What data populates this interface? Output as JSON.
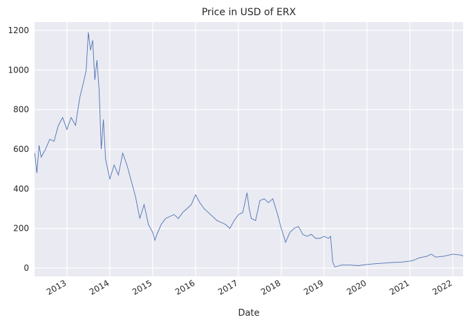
{
  "chart_data": {
    "type": "line",
    "title": "Price in USD of ERX",
    "x_label": "Date",
    "x": [
      2012.25,
      2012.3,
      2012.35,
      2012.4,
      2012.5,
      2012.6,
      2012.7,
      2012.8,
      2012.9,
      2013.0,
      2013.1,
      2013.2,
      2013.3,
      2013.4,
      2013.45,
      2013.5,
      2013.55,
      2013.6,
      2013.65,
      2013.7,
      2013.75,
      2013.8,
      2013.85,
      2013.9,
      2014.0,
      2014.1,
      2014.2,
      2014.3,
      2014.4,
      2014.5,
      2014.6,
      2014.7,
      2014.8,
      2014.9,
      2015.0,
      2015.05,
      2015.1,
      2015.2,
      2015.3,
      2015.4,
      2015.5,
      2015.6,
      2015.7,
      2015.8,
      2015.9,
      2016.0,
      2016.1,
      2016.2,
      2016.3,
      2016.4,
      2016.5,
      2016.6,
      2016.7,
      2016.8,
      2016.9,
      2017.0,
      2017.1,
      2017.2,
      2017.25,
      2017.3,
      2017.4,
      2017.5,
      2017.6,
      2017.7,
      2017.8,
      2017.9,
      2018.0,
      2018.1,
      2018.2,
      2018.3,
      2018.4,
      2018.5,
      2018.6,
      2018.7,
      2018.8,
      2018.9,
      2019.0,
      2019.1,
      2019.15,
      2019.2,
      2019.25,
      2019.4,
      2019.6,
      2019.8,
      2020.0,
      2020.2,
      2020.4,
      2020.6,
      2020.8,
      2021.0,
      2021.1,
      2021.2,
      2021.4,
      2021.5,
      2021.6,
      2021.8,
      2022.0,
      2022.2,
      2022.24
    ],
    "series": [
      {
        "name": "ERX",
        "color": "#4c72b0",
        "values": [
          580,
          480,
          620,
          560,
          600,
          650,
          640,
          720,
          760,
          700,
          760,
          720,
          860,
          950,
          1000,
          1190,
          1100,
          1150,
          950,
          1050,
          900,
          600,
          750,
          550,
          450,
          520,
          470,
          580,
          520,
          440,
          360,
          250,
          320,
          220,
          180,
          140,
          170,
          220,
          250,
          260,
          270,
          250,
          280,
          300,
          320,
          370,
          330,
          300,
          280,
          260,
          240,
          230,
          220,
          200,
          240,
          270,
          280,
          380,
          300,
          250,
          240,
          340,
          350,
          330,
          350,
          280,
          200,
          130,
          180,
          200,
          210,
          170,
          160,
          170,
          150,
          150,
          160,
          150,
          160,
          30,
          5,
          15,
          15,
          12,
          18,
          22,
          25,
          28,
          30,
          35,
          40,
          50,
          60,
          70,
          55,
          60,
          70,
          65,
          60
        ]
      }
    ],
    "xlim": [
      2012.245,
      2022.24
    ],
    "xticks": [
      2013,
      2014,
      2015,
      2016,
      2017,
      2018,
      2019,
      2020,
      2021,
      2022
    ],
    "ylim": [
      -42,
      1242
    ],
    "yticks": [
      0,
      200,
      400,
      600,
      800,
      1000,
      1200
    ],
    "grid": true,
    "background": "#eaeaf2"
  }
}
